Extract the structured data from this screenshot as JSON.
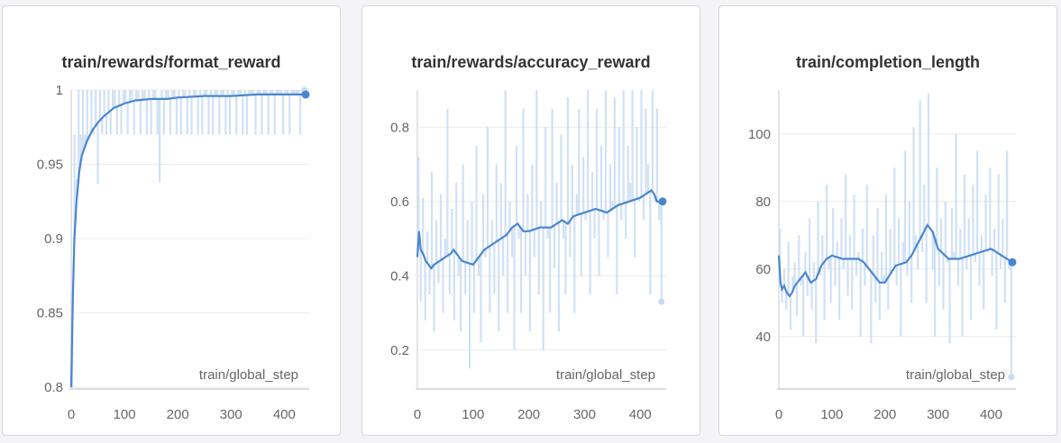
{
  "colors": {
    "line": "#4a86cf",
    "band": "#c8dcf3",
    "grid": "#ececec",
    "axis": "#dcdcdc",
    "tick_text": "#666666"
  },
  "chart_data": [
    {
      "type": "line",
      "title": "train/rewards/format_reward",
      "xlabel": "train/global_step",
      "ylabel": "",
      "xlim": [
        0,
        440
      ],
      "ylim": [
        0.8,
        1.0
      ],
      "xticks": [
        0,
        100,
        200,
        300,
        400
      ],
      "yticks": [
        0.8,
        0.85,
        0.9,
        0.95,
        1.0
      ],
      "ytick_labels": [
        "0.8",
        "0.85",
        "0.9",
        "0.95",
        "1"
      ],
      "grid": true,
      "series": [
        {
          "role": "smoothed",
          "x": [
            0,
            3,
            6,
            10,
            15,
            20,
            30,
            40,
            50,
            60,
            80,
            100,
            120,
            150,
            180,
            200,
            250,
            300,
            350,
            400,
            440
          ],
          "y": [
            0.8,
            0.86,
            0.9,
            0.925,
            0.945,
            0.956,
            0.966,
            0.973,
            0.978,
            0.982,
            0.988,
            0.991,
            0.993,
            0.994,
            0.994,
            0.995,
            0.996,
            0.996,
            0.997,
            0.997,
            0.997
          ]
        },
        {
          "role": "raw",
          "x": [
            2,
            6,
            10,
            14,
            18,
            22,
            26,
            30,
            34,
            38,
            42,
            46,
            50,
            54,
            58,
            62,
            66,
            70,
            74,
            78,
            82,
            86,
            90,
            94,
            98,
            102,
            106,
            110,
            114,
            118,
            122,
            126,
            130,
            134,
            138,
            142,
            146,
            150,
            154,
            158,
            162,
            166,
            170,
            174,
            178,
            182,
            186,
            190,
            194,
            198,
            202,
            206,
            210,
            214,
            218,
            222,
            226,
            230,
            234,
            238,
            242,
            246,
            250,
            254,
            258,
            262,
            266,
            270,
            274,
            278,
            282,
            286,
            290,
            294,
            298,
            302,
            306,
            310,
            314,
            318,
            322,
            326,
            330,
            334,
            338,
            342,
            346,
            350,
            354,
            358,
            362,
            366,
            370,
            374,
            378,
            382,
            386,
            390,
            394,
            398,
            402,
            406,
            410,
            414,
            418,
            422,
            426,
            430,
            434,
            438
          ],
          "y": [
            0.8,
            0.97,
            0.94,
            1.0,
            0.97,
            1.0,
            0.97,
            1.0,
            0.97,
            1.0,
            0.97,
            1.0,
            0.937,
            1.0,
            0.97,
            1.0,
            0.97,
            1.0,
            0.97,
            1.0,
            1.0,
            0.97,
            1.0,
            0.97,
            1.0,
            1.0,
            0.97,
            1.0,
            1.0,
            0.97,
            1.0,
            1.0,
            0.97,
            1.0,
            1.0,
            0.97,
            1.0,
            0.97,
            1.0,
            1.0,
            0.97,
            0.938,
            1.0,
            0.97,
            1.0,
            1.0,
            0.97,
            1.0,
            1.0,
            0.97,
            1.0,
            0.97,
            1.0,
            1.0,
            0.97,
            1.0,
            0.97,
            1.0,
            1.0,
            0.97,
            1.0,
            0.97,
            1.0,
            1.0,
            0.97,
            1.0,
            0.97,
            1.0,
            1.0,
            0.97,
            1.0,
            1.0,
            0.97,
            1.0,
            0.97,
            1.0,
            1.0,
            0.97,
            1.0,
            1.0,
            0.97,
            1.0,
            0.97,
            1.0,
            1.0,
            1.0,
            0.97,
            1.0,
            1.0,
            0.97,
            1.0,
            1.0,
            0.97,
            1.0,
            1.0,
            0.97,
            1.0,
            1.0,
            1.0,
            0.97,
            1.0,
            1.0,
            0.97,
            1.0,
            1.0,
            1.0,
            1.0,
            0.97,
            1.0,
            1.0
          ]
        }
      ]
    },
    {
      "type": "line",
      "title": "train/rewards/accuracy_reward",
      "xlabel": "train/global_step",
      "ylabel": "",
      "xlim": [
        0,
        440
      ],
      "ylim": [
        0.1,
        0.9
      ],
      "xticks": [
        0,
        100,
        200,
        300,
        400
      ],
      "yticks": [
        0.2,
        0.4,
        0.6,
        0.8
      ],
      "ytick_labels": [
        "0.2",
        "0.4",
        "0.6",
        "0.8"
      ],
      "grid": true,
      "series": [
        {
          "role": "smoothed",
          "x": [
            0,
            3,
            6,
            10,
            15,
            20,
            25,
            30,
            40,
            50,
            60,
            65,
            70,
            80,
            100,
            120,
            140,
            160,
            170,
            180,
            190,
            200,
            220,
            240,
            260,
            270,
            280,
            300,
            320,
            340,
            360,
            380,
            400,
            410,
            420,
            425,
            430,
            440
          ],
          "y": [
            0.45,
            0.52,
            0.47,
            0.46,
            0.44,
            0.43,
            0.42,
            0.43,
            0.44,
            0.45,
            0.46,
            0.47,
            0.46,
            0.44,
            0.43,
            0.47,
            0.49,
            0.51,
            0.53,
            0.54,
            0.52,
            0.52,
            0.53,
            0.53,
            0.55,
            0.54,
            0.56,
            0.57,
            0.58,
            0.57,
            0.59,
            0.6,
            0.61,
            0.62,
            0.63,
            0.62,
            0.6,
            0.6
          ]
        },
        {
          "role": "raw",
          "x": [
            2,
            6,
            10,
            14,
            18,
            22,
            26,
            30,
            34,
            38,
            42,
            46,
            50,
            54,
            58,
            62,
            66,
            70,
            74,
            78,
            82,
            86,
            90,
            94,
            98,
            102,
            106,
            110,
            114,
            118,
            122,
            126,
            130,
            134,
            138,
            142,
            146,
            150,
            154,
            158,
            162,
            166,
            170,
            174,
            178,
            182,
            186,
            190,
            194,
            198,
            202,
            206,
            210,
            214,
            218,
            222,
            226,
            230,
            234,
            238,
            242,
            246,
            250,
            254,
            258,
            262,
            266,
            270,
            274,
            278,
            282,
            286,
            290,
            294,
            298,
            302,
            306,
            310,
            314,
            318,
            322,
            326,
            330,
            334,
            338,
            342,
            346,
            350,
            354,
            358,
            362,
            366,
            370,
            374,
            378,
            382,
            386,
            390,
            394,
            398,
            402,
            406,
            410,
            414,
            418,
            422,
            426,
            430,
            434,
            438
          ],
          "y": [
            0.72,
            0.33,
            0.61,
            0.28,
            0.52,
            0.35,
            0.68,
            0.25,
            0.55,
            0.38,
            0.62,
            0.3,
            0.5,
            0.85,
            0.35,
            0.58,
            0.28,
            0.65,
            0.4,
            0.25,
            0.7,
            0.35,
            0.55,
            0.15,
            0.6,
            0.3,
            0.75,
            0.4,
            0.22,
            0.62,
            0.45,
            0.8,
            0.3,
            0.55,
            0.35,
            0.7,
            0.25,
            0.65,
            0.4,
            0.9,
            0.3,
            0.6,
            0.45,
            0.2,
            0.75,
            0.5,
            0.3,
            0.85,
            0.4,
            0.62,
            0.25,
            0.7,
            0.45,
            0.9,
            0.35,
            0.6,
            0.2,
            0.8,
            0.5,
            0.3,
            0.85,
            0.42,
            0.65,
            0.25,
            0.78,
            0.5,
            0.35,
            0.88,
            0.45,
            0.7,
            0.3,
            0.62,
            0.85,
            0.4,
            0.72,
            0.55,
            0.9,
            0.35,
            0.68,
            0.5,
            0.85,
            0.4,
            0.75,
            0.55,
            0.9,
            0.45,
            0.7,
            0.6,
            0.88,
            0.35,
            0.8,
            0.55,
            0.9,
            0.5,
            0.75,
            0.65,
            0.9,
            0.45,
            0.8,
            0.6,
            0.9,
            0.55,
            0.85,
            0.7,
            0.35,
            0.9,
            0.6,
            0.85,
            0.55,
            0.33
          ]
        }
      ]
    },
    {
      "type": "line",
      "title": "train/completion_length",
      "xlabel": "train/global_step",
      "ylabel": "",
      "xlim": [
        0,
        440
      ],
      "ylim": [
        25,
        113
      ],
      "xticks": [
        0,
        100,
        200,
        300,
        400
      ],
      "yticks": [
        40,
        60,
        80,
        100
      ],
      "ytick_labels": [
        "40",
        "60",
        "80",
        "100"
      ],
      "grid": true,
      "series": [
        {
          "role": "smoothed",
          "x": [
            0,
            3,
            6,
            10,
            15,
            20,
            25,
            30,
            40,
            50,
            60,
            70,
            80,
            90,
            100,
            120,
            140,
            150,
            160,
            170,
            180,
            190,
            200,
            220,
            240,
            250,
            260,
            270,
            280,
            290,
            300,
            320,
            340,
            360,
            380,
            400,
            410,
            420,
            430,
            440
          ],
          "y": [
            64,
            56,
            54,
            55,
            53,
            52,
            53,
            55,
            57,
            59,
            56,
            57,
            61,
            63,
            64,
            63,
            63,
            63,
            62,
            60,
            58,
            56,
            56,
            61,
            62,
            64,
            67,
            70,
            73,
            71,
            66,
            63,
            63,
            64,
            65,
            66,
            65,
            64,
            63,
            62
          ]
        },
        {
          "role": "raw",
          "x": [
            2,
            6,
            10,
            14,
            18,
            22,
            26,
            30,
            34,
            38,
            42,
            46,
            50,
            54,
            58,
            62,
            66,
            70,
            74,
            78,
            82,
            86,
            90,
            94,
            98,
            102,
            106,
            110,
            114,
            118,
            122,
            126,
            130,
            134,
            138,
            142,
            146,
            150,
            154,
            158,
            162,
            166,
            170,
            174,
            178,
            182,
            186,
            190,
            194,
            198,
            202,
            206,
            210,
            214,
            218,
            222,
            226,
            230,
            234,
            238,
            242,
            246,
            250,
            254,
            258,
            262,
            266,
            270,
            274,
            278,
            282,
            286,
            290,
            294,
            298,
            302,
            306,
            310,
            314,
            318,
            322,
            326,
            330,
            334,
            338,
            342,
            346,
            350,
            354,
            358,
            362,
            366,
            370,
            374,
            378,
            382,
            386,
            390,
            394,
            398,
            402,
            406,
            410,
            414,
            418,
            422,
            426,
            430,
            434,
            438
          ],
          "y": [
            72,
            50,
            60,
            48,
            68,
            42,
            58,
            62,
            46,
            70,
            55,
            40,
            65,
            52,
            75,
            48,
            62,
            38,
            80,
            58,
            70,
            45,
            85,
            60,
            50,
            78,
            55,
            68,
            45,
            75,
            60,
            88,
            52,
            70,
            48,
            82,
            58,
            65,
            40,
            72,
            55,
            85,
            60,
            38,
            70,
            50,
            78,
            45,
            65,
            58,
            82,
            48,
            72,
            60,
            90,
            55,
            75,
            40,
            68,
            95,
            58,
            80,
            50,
            102,
            70,
            60,
            110,
            65,
            85,
            50,
            112,
            72,
            60,
            40,
            90,
            55,
            75,
            48,
            80,
            62,
            38,
            78,
            65,
            100,
            55,
            72,
            40,
            88,
            60,
            75,
            45,
            85,
            62,
            95,
            55,
            70,
            48,
            82,
            65,
            90,
            58,
            72,
            42,
            88,
            60,
            75,
            50,
            95,
            60,
            28
          ]
        }
      ]
    }
  ]
}
